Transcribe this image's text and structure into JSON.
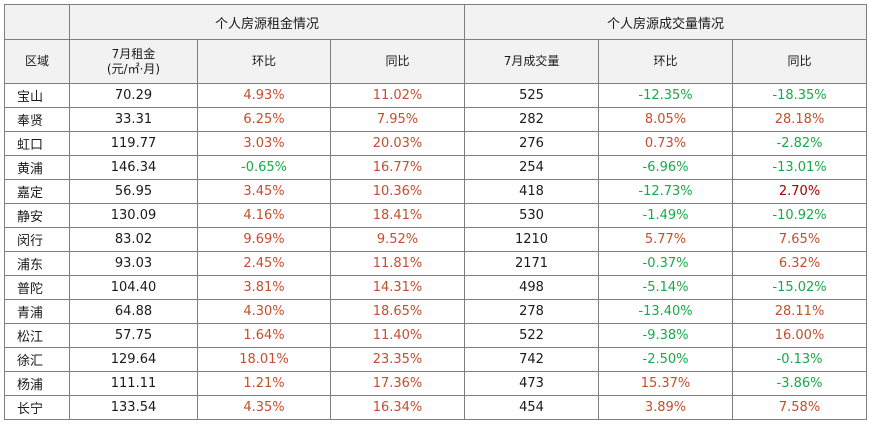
{
  "header": {
    "group_rent": "个人房源租金情况",
    "group_volume": "个人房源成交量情况",
    "col_region": "区域",
    "col_rent_line1": "7月租金",
    "col_rent_line2": "(元/㎡·月)",
    "col_mom": "环比",
    "col_yoy": "同比",
    "col_volume": "7月成交量",
    "col_mom2": "环比",
    "col_yoy2": "同比"
  },
  "colors": {
    "negative": "#1aa84a",
    "positive": "#c0502f",
    "highlight": "#a00000",
    "header_bg": "#f2f2f2"
  },
  "rows": [
    {
      "region": "宝山",
      "rent": "70.29",
      "rent_mom": "4.93%",
      "rent_yoy": "11.02%",
      "volume": "525",
      "vol_mom": "-12.35%",
      "vol_yoy": "-18.35%"
    },
    {
      "region": "奉贤",
      "rent": "33.31",
      "rent_mom": "6.25%",
      "rent_yoy": "7.95%",
      "volume": "282",
      "vol_mom": "8.05%",
      "vol_yoy": "28.18%"
    },
    {
      "region": "虹口",
      "rent": "119.77",
      "rent_mom": "3.03%",
      "rent_yoy": "20.03%",
      "volume": "276",
      "vol_mom": "0.73%",
      "vol_yoy": "-2.82%"
    },
    {
      "region": "黄浦",
      "rent": "146.34",
      "rent_mom": "-0.65%",
      "rent_yoy": "16.77%",
      "volume": "254",
      "vol_mom": "-6.96%",
      "vol_yoy": "-13.01%"
    },
    {
      "region": "嘉定",
      "rent": "56.95",
      "rent_mom": "3.45%",
      "rent_yoy": "10.36%",
      "volume": "418",
      "vol_mom": "-12.73%",
      "vol_yoy": "2.70%"
    },
    {
      "region": "静安",
      "rent": "130.09",
      "rent_mom": "4.16%",
      "rent_yoy": "18.41%",
      "volume": "530",
      "vol_mom": "-1.49%",
      "vol_yoy": "-10.92%"
    },
    {
      "region": "闵行",
      "rent": "83.02",
      "rent_mom": "9.69%",
      "rent_yoy": "9.52%",
      "volume": "1210",
      "vol_mom": "5.77%",
      "vol_yoy": "7.65%"
    },
    {
      "region": "浦东",
      "rent": "93.03",
      "rent_mom": "2.45%",
      "rent_yoy": "11.81%",
      "volume": "2171",
      "vol_mom": "-0.37%",
      "vol_yoy": "6.32%"
    },
    {
      "region": "普陀",
      "rent": "104.40",
      "rent_mom": "3.81%",
      "rent_yoy": "14.31%",
      "volume": "498",
      "vol_mom": "-5.14%",
      "vol_yoy": "-15.02%"
    },
    {
      "region": "青浦",
      "rent": "64.88",
      "rent_mom": "4.30%",
      "rent_yoy": "18.65%",
      "volume": "278",
      "vol_mom": "-13.40%",
      "vol_yoy": "28.11%"
    },
    {
      "region": "松江",
      "rent": "57.75",
      "rent_mom": "1.64%",
      "rent_yoy": "11.40%",
      "volume": "522",
      "vol_mom": "-9.38%",
      "vol_yoy": "16.00%"
    },
    {
      "region": "徐汇",
      "rent": "129.64",
      "rent_mom": "18.01%",
      "rent_yoy": "23.35%",
      "volume": "742",
      "vol_mom": "-2.50%",
      "vol_yoy": "-0.13%"
    },
    {
      "region": "杨浦",
      "rent": "111.11",
      "rent_mom": "1.21%",
      "rent_yoy": "17.36%",
      "volume": "473",
      "vol_mom": "15.37%",
      "vol_yoy": "-3.86%"
    },
    {
      "region": "长宁",
      "rent": "133.54",
      "rent_mom": "4.35%",
      "rent_yoy": "16.34%",
      "volume": "454",
      "vol_mom": "3.89%",
      "vol_yoy": "7.58%"
    }
  ]
}
